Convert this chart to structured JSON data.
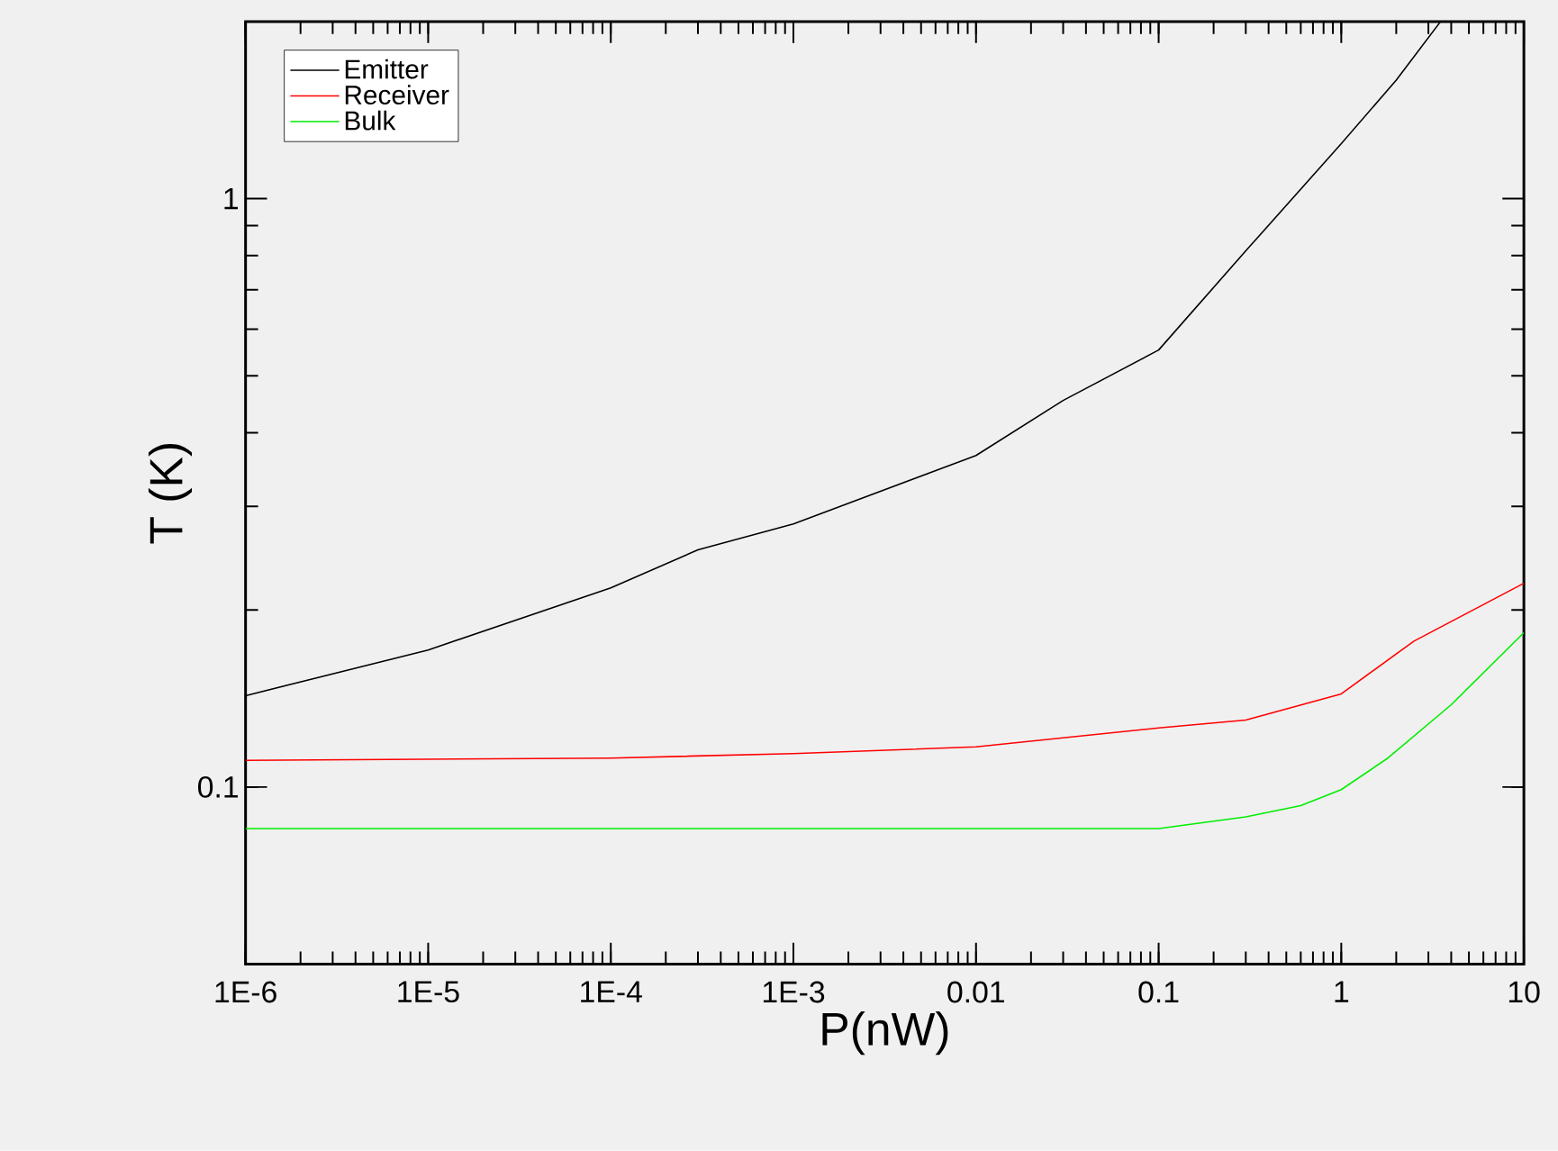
{
  "chart_data": {
    "type": "line",
    "xlabel": "P(nW)",
    "ylabel": "T (K)",
    "log": "xy",
    "legend": "top left",
    "grid": false,
    "marker": "none",
    "line_style": "solid",
    "xlim": [
      1e-06,
      10
    ],
    "ylim": [
      0.05,
      2
    ],
    "xticks": [
      {
        "value": 1e-06,
        "label": "1E-6"
      },
      {
        "value": 1e-05,
        "label": "1E-5"
      },
      {
        "value": 0.0001,
        "label": "1E-4"
      },
      {
        "value": 0.001,
        "label": "1E-3"
      },
      0.01,
      0.1,
      1,
      10
    ],
    "yticks": [
      0.1,
      1
    ],
    "series": [
      {
        "name": "Emitter",
        "color": "#000000",
        "x": [
          1e-06,
          1e-05,
          0.0001,
          0.0003,
          0.001,
          0.01,
          0.03,
          0.1,
          0.3,
          1,
          2,
          3.5
        ],
        "values": [
          0.143,
          0.171,
          0.218,
          0.253,
          0.28,
          0.366,
          0.454,
          0.553,
          0.815,
          1.24,
          1.59,
          2.0
        ]
      },
      {
        "name": "Receiver",
        "color": "#ff0000",
        "x": [
          1e-06,
          0.0001,
          0.001,
          0.01,
          0.1,
          0.3,
          1,
          2.5,
          10
        ],
        "values": [
          0.111,
          0.112,
          0.114,
          0.117,
          0.126,
          0.13,
          0.144,
          0.177,
          0.222
        ]
      },
      {
        "name": "Bulk",
        "color": "#00ee00",
        "x": [
          1e-06,
          0.01,
          0.1,
          0.3,
          0.6,
          1,
          1.8,
          4,
          10
        ],
        "values": [
          0.085,
          0.085,
          0.085,
          0.089,
          0.093,
          0.099,
          0.112,
          0.138,
          0.183
        ]
      }
    ]
  }
}
